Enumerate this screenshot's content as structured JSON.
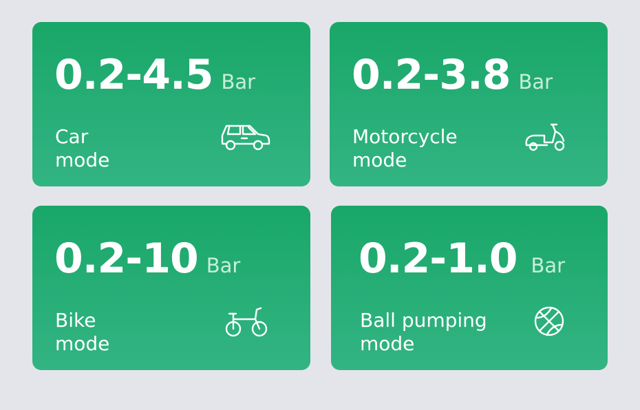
{
  "cards": [
    {
      "value": "0.2-4.5",
      "unit": "Bar",
      "label_line1": "Car",
      "label_line2": "mode",
      "icon": "car-icon"
    },
    {
      "value": "0.2-3.8",
      "unit": "Bar",
      "label_line1": "Motorcycle",
      "label_line2": "mode",
      "icon": "scooter-icon"
    },
    {
      "value": "0.2-10",
      "unit": "Bar",
      "label_line1": "Bike",
      "label_line2": "mode",
      "icon": "bicycle-icon"
    },
    {
      "value": "0.2-1.0",
      "unit": "Bar",
      "label_line1": "Ball pumping",
      "label_line2": "mode",
      "icon": "basketball-icon"
    }
  ],
  "colors": {
    "background": "#e4e5ea",
    "card_top": "#19a768",
    "card_bottom": "#33b483",
    "unit_text": "#c9eed9"
  }
}
